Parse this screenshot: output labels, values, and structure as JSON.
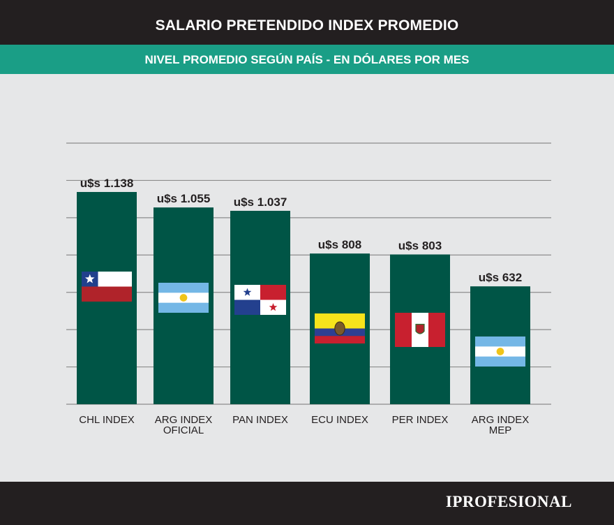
{
  "header": {
    "title": "SALARIO PRETENDIDO INDEX PROMEDIO"
  },
  "subheader": {
    "subtitle": "NIVEL PROMEDIO SEGÚN PAÍS - EN DÓLARES POR MES"
  },
  "footer": {
    "brand": "IPROFESIONAL"
  },
  "colors": {
    "bar": "#005546",
    "header_bg": "#231f20",
    "subheader_bg": "#1a9e86",
    "chart_bg": "#e6e7e8",
    "grid": "#8c8c8c"
  },
  "chart_data": {
    "type": "bar",
    "title": "SALARIO PRETENDIDO INDEX PROMEDIO",
    "subtitle": "NIVEL PROMEDIO SEGÚN PAÍS - EN DÓLARES POR MES",
    "xlabel": "",
    "ylabel": "",
    "ylim": [
      0,
      1400
    ],
    "grid": true,
    "categories": [
      [
        "CHL INDEX"
      ],
      [
        "ARG INDEX",
        "OFICIAL"
      ],
      [
        "PAN INDEX"
      ],
      [
        "ECU INDEX"
      ],
      [
        "PER INDEX"
      ],
      [
        "ARG INDEX",
        "MEP"
      ]
    ],
    "values": [
      1138,
      1055,
      1037,
      808,
      803,
      632
    ],
    "value_labels": [
      "u$s 1.138",
      "u$s 1.055",
      "u$s 1.037",
      "u$s 808",
      "u$s 803",
      "u$s 632"
    ],
    "flags": [
      "chile-flag",
      "argentina-flag",
      "panama-flag",
      "ecuador-flag",
      "peru-flag",
      "argentina-flag"
    ]
  }
}
